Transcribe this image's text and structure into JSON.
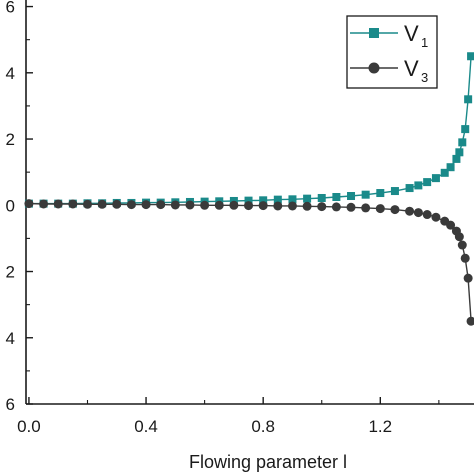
{
  "chart_data": {
    "type": "line",
    "xlabel": "Flowing parameter l",
    "xticks": [
      "0.0",
      "0.4",
      "0.8",
      "1.2"
    ],
    "xtick_values": [
      0.0,
      0.4,
      0.8,
      1.2
    ],
    "yticks": [
      "6",
      "4",
      "2",
      "0",
      "2",
      "4",
      "6"
    ],
    "ytick_values": [
      6,
      4,
      2,
      0,
      -2,
      -4,
      -6
    ],
    "xlim": [
      -0.01,
      1.52
    ],
    "ylim": [
      -6,
      6.5
    ],
    "legend_position": "top-right",
    "series": [
      {
        "name": "V",
        "subscript": "1",
        "color": "#1a8a8a",
        "marker": "square",
        "x": [
          0.0,
          0.05,
          0.1,
          0.15,
          0.2,
          0.25,
          0.3,
          0.35,
          0.4,
          0.45,
          0.5,
          0.55,
          0.6,
          0.65,
          0.7,
          0.75,
          0.8,
          0.85,
          0.9,
          0.95,
          1.0,
          1.05,
          1.1,
          1.15,
          1.2,
          1.25,
          1.3,
          1.33,
          1.36,
          1.39,
          1.42,
          1.44,
          1.46,
          1.47,
          1.48,
          1.49,
          1.5,
          1.51
        ],
        "y": [
          0.05,
          0.05,
          0.05,
          0.05,
          0.06,
          0.06,
          0.07,
          0.07,
          0.08,
          0.08,
          0.09,
          0.1,
          0.11,
          0.12,
          0.13,
          0.14,
          0.15,
          0.17,
          0.18,
          0.2,
          0.22,
          0.25,
          0.28,
          0.32,
          0.37,
          0.43,
          0.52,
          0.6,
          0.7,
          0.82,
          0.98,
          1.15,
          1.4,
          1.6,
          1.9,
          2.3,
          3.2,
          4.5
        ]
      },
      {
        "name": "V",
        "subscript": "3",
        "color": "#3a3a3a",
        "marker": "circle",
        "x": [
          0.0,
          0.05,
          0.1,
          0.15,
          0.2,
          0.25,
          0.3,
          0.35,
          0.4,
          0.45,
          0.5,
          0.55,
          0.6,
          0.65,
          0.7,
          0.75,
          0.8,
          0.85,
          0.9,
          0.95,
          1.0,
          1.05,
          1.1,
          1.15,
          1.2,
          1.25,
          1.3,
          1.33,
          1.36,
          1.39,
          1.42,
          1.44,
          1.46,
          1.47,
          1.48,
          1.49,
          1.5,
          1.51
        ],
        "y": [
          0.05,
          0.04,
          0.04,
          0.04,
          0.03,
          0.03,
          0.03,
          0.02,
          0.02,
          0.02,
          0.01,
          0.01,
          0.0,
          0.0,
          0.0,
          -0.01,
          -0.01,
          -0.02,
          -0.02,
          -0.03,
          -0.04,
          -0.05,
          -0.06,
          -0.08,
          -0.1,
          -0.13,
          -0.18,
          -0.22,
          -0.28,
          -0.36,
          -0.48,
          -0.6,
          -0.78,
          -0.95,
          -1.2,
          -1.6,
          -2.2,
          -3.5
        ]
      }
    ]
  }
}
